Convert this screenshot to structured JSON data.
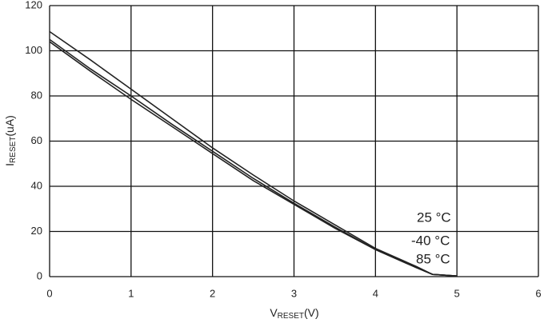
{
  "chart_data": {
    "type": "line",
    "x_label": {
      "main": "V",
      "sub": "RESET",
      "unit": "(V)"
    },
    "y_label": {
      "main": "I",
      "sub": "RESET",
      "unit": "(uA)"
    },
    "x": [
      0,
      0.5,
      1,
      1.5,
      2,
      2.5,
      3,
      3.5,
      4,
      4.5,
      4.7,
      5
    ],
    "series": [
      {
        "name": "25 °C",
        "color": "#222222",
        "values": [
          108.5,
          96,
          83,
          70,
          57,
          45,
          33.5,
          23,
          12.5,
          4.5,
          1,
          0.3
        ]
      },
      {
        "name": "-40 °C",
        "color": "#222222",
        "values": [
          105,
          92,
          80,
          67.5,
          55.5,
          43.5,
          32.5,
          22,
          12,
          4,
          1,
          0.3
        ]
      },
      {
        "name": "85 °C",
        "color": "#222222",
        "values": [
          104,
          91,
          78.5,
          66.5,
          54.5,
          42.5,
          32,
          21.5,
          12,
          4,
          1,
          0.3
        ]
      }
    ],
    "xlim": [
      0,
      6
    ],
    "xticks": [
      0,
      1,
      2,
      3,
      4,
      5,
      6
    ],
    "ylim": [
      0,
      120
    ],
    "yticks": [
      0,
      20,
      40,
      60,
      80,
      100,
      120
    ],
    "grid": true
  }
}
